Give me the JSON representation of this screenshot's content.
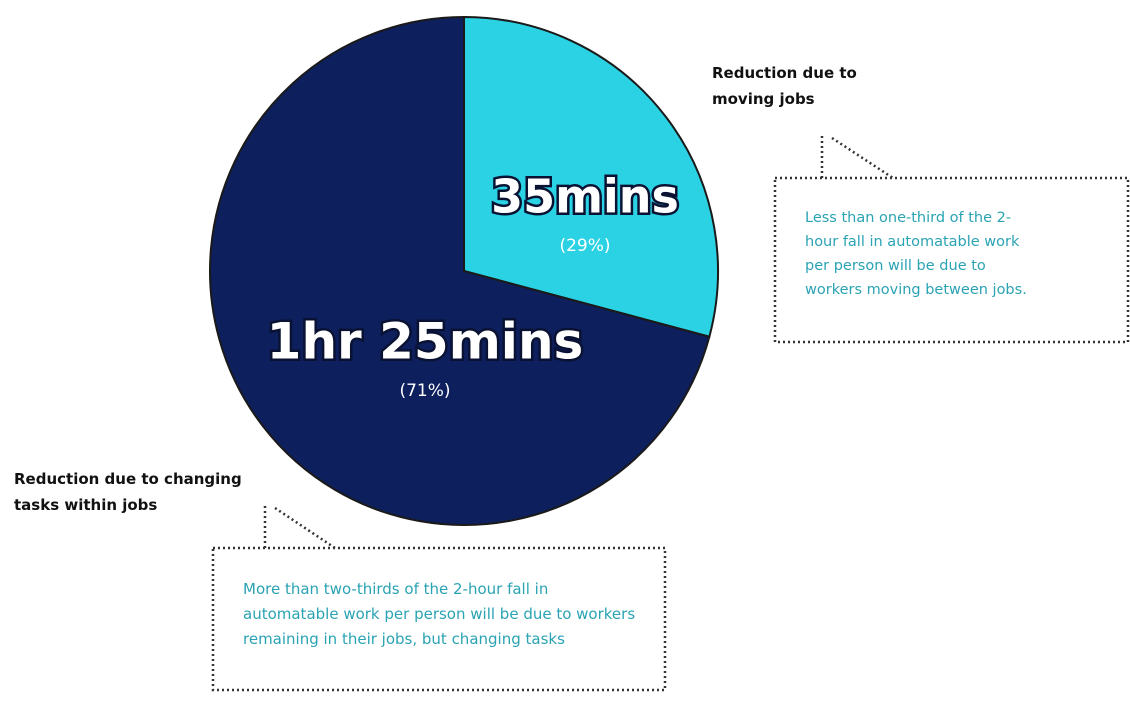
{
  "chart_data": {
    "type": "pie",
    "categories": [
      "Reduction due to moving jobs",
      "Reduction due to changing tasks within jobs"
    ],
    "values": [
      35,
      85
    ],
    "value_labels": [
      "35mins",
      "1hr 25mins"
    ],
    "percent_labels": [
      "(29%)",
      "(71%)"
    ],
    "colors": [
      "#2ad2e4",
      "#0d1f5c"
    ],
    "annotations": [
      "Less than one-third of the 2-hour fall in automatable work per person will be due to workers moving between jobs.",
      "More than two-thirds of the 2-hour fall in automatable work per person will be due to workers remaining in their jobs, but changing tasks"
    ]
  }
}
